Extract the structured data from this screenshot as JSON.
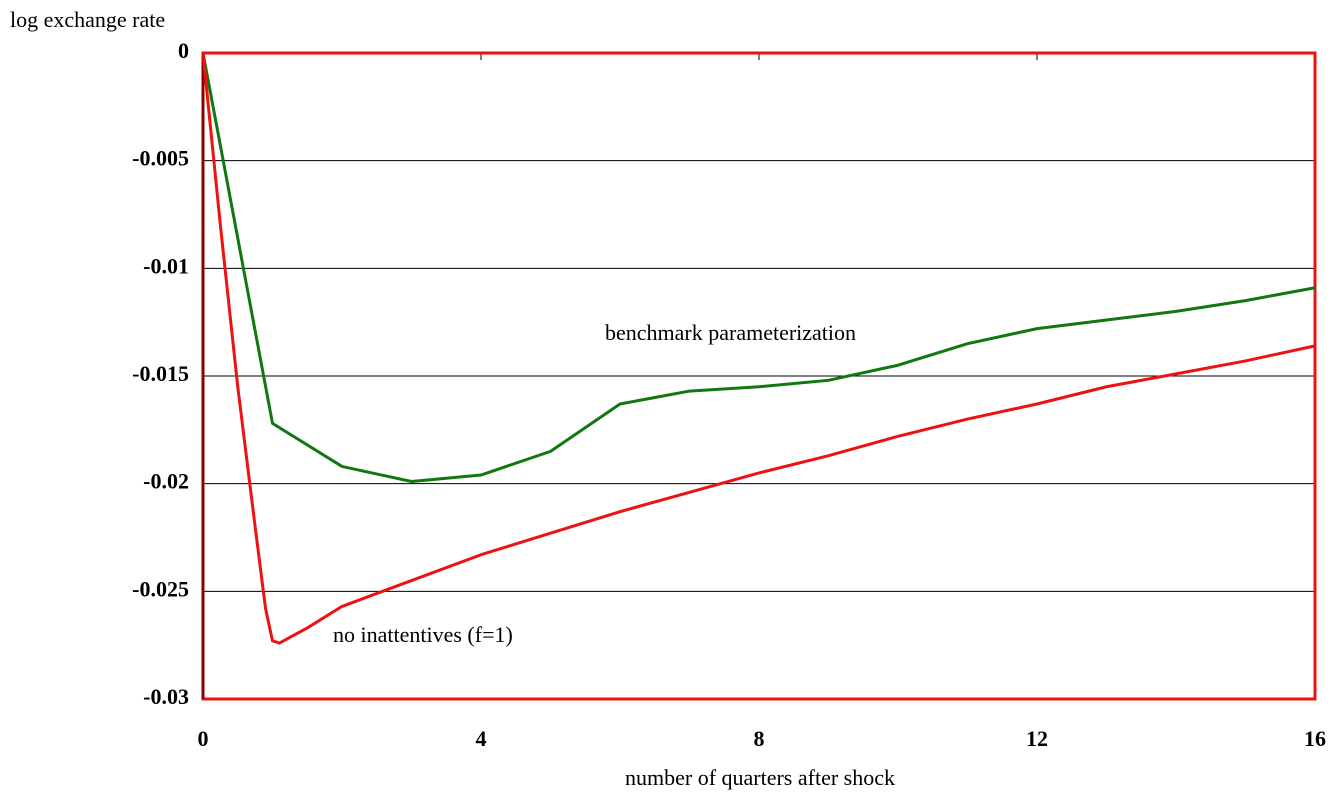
{
  "chart_data": {
    "type": "line",
    "ylabel": "log exchange rate",
    "xlabel": "number of  quarters after shock",
    "annotations": [
      "benchmark parameterization",
      "no inattentives (f=1)"
    ],
    "xlim": [
      0,
      16
    ],
    "xticks": [
      0,
      4,
      8,
      12,
      16
    ],
    "ylim": [
      -0.03,
      0
    ],
    "yticks": [
      0,
      -0.005,
      -0.01,
      -0.015,
      -0.02,
      -0.025,
      -0.03
    ],
    "grid": true,
    "series": [
      {
        "color": "#117711",
        "x": [
          0,
          1,
          2,
          3,
          4,
          5,
          6,
          7,
          8,
          9,
          10,
          11,
          12,
          13,
          14,
          15,
          16
        ],
        "values": [
          0,
          -0.0172,
          -0.0192,
          -0.0199,
          -0.0196,
          -0.0185,
          -0.0163,
          -0.0157,
          -0.0155,
          -0.0152,
          -0.0145,
          -0.0135,
          -0.0128,
          -0.0124,
          -0.012,
          -0.0115,
          -0.0109
        ]
      },
      {
        "color": "#ee1111",
        "x": [
          0,
          0.25,
          0.5,
          0.75,
          0.9,
          1,
          1.1,
          1.5,
          2,
          3,
          4,
          5,
          6,
          7,
          8,
          9,
          10,
          11,
          12,
          13,
          14,
          15,
          16
        ],
        "values": [
          0,
          -0.008,
          -0.0155,
          -0.022,
          -0.0258,
          -0.0273,
          -0.0274,
          -0.0267,
          -0.0257,
          -0.0245,
          -0.0233,
          -0.0223,
          -0.0213,
          -0.0204,
          -0.0195,
          -0.0187,
          -0.0178,
          -0.017,
          -0.0163,
          -0.0155,
          -0.0149,
          -0.0143,
          -0.0136
        ]
      }
    ]
  }
}
